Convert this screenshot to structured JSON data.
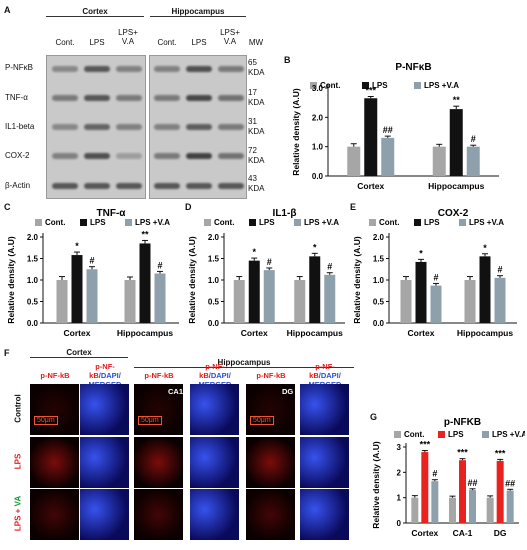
{
  "panels": {
    "A": "A",
    "B": "B",
    "C": "C",
    "D": "D",
    "E": "E",
    "F": "F",
    "G": "G"
  },
  "blot": {
    "groups": [
      "Cortex",
      "Hippocampus"
    ],
    "lanes": [
      "Cont.",
      "LPS",
      "LPS+\nV.A",
      "Cont.",
      "LPS",
      "LPS+\nV.A"
    ],
    "mw_header": "MW",
    "rows": [
      {
        "name": "P-NFκB",
        "mw": "65\nKDA"
      },
      {
        "name": "TNF-α",
        "mw": "17\nKDA"
      },
      {
        "name": "IL1-beta",
        "mw": "31\nKDA"
      },
      {
        "name": "COX-2",
        "mw": "72\nKDA"
      },
      {
        "name": "β-Actin",
        "mw": "43\nKDA"
      }
    ]
  },
  "colors": {
    "cont": "#a6a6a6",
    "lps": "#111111",
    "va": "#8fa0ad",
    "lps_red": "#e8231f"
  },
  "chart_data": [
    {
      "id": "B",
      "type": "bar",
      "title": "P-NFκB",
      "ylabel": "Relative density (A.U)",
      "categories": [
        "Cortex",
        "Hippocampus"
      ],
      "ylim": [
        0,
        3.0
      ],
      "yticks": [
        0.0,
        1.0,
        2.0,
        3.0
      ],
      "legend": [
        "Cont.",
        "LPS",
        "LPS +V.A"
      ],
      "series": [
        {
          "name": "Cont.",
          "values": [
            1.0,
            1.0
          ],
          "errors": [
            0.1,
            0.08
          ],
          "labels": [
            "",
            ""
          ]
        },
        {
          "name": "LPS",
          "values": [
            2.65,
            2.28
          ],
          "errors": [
            0.06,
            0.1
          ],
          "labels": [
            "***",
            "**"
          ]
        },
        {
          "name": "LPS +V.A",
          "values": [
            1.3,
            1.0
          ],
          "errors": [
            0.06,
            0.05
          ],
          "labels": [
            "##",
            "#"
          ]
        }
      ]
    },
    {
      "id": "C",
      "type": "bar",
      "title": "TNF-α",
      "ylabel": "Relative density (A.U)",
      "categories": [
        "Cortex",
        "Hippocampus"
      ],
      "ylim": [
        0,
        2.0
      ],
      "yticks": [
        0.0,
        0.5,
        1.0,
        1.5,
        2.0
      ],
      "legend": [
        "Cont.",
        "LPS",
        "LPS +V.A"
      ],
      "series": [
        {
          "name": "Cont.",
          "values": [
            1.0,
            1.0
          ],
          "errors": [
            0.08,
            0.07
          ],
          "labels": [
            "",
            ""
          ]
        },
        {
          "name": "LPS",
          "values": [
            1.58,
            1.85
          ],
          "errors": [
            0.07,
            0.07
          ],
          "labels": [
            "*",
            "**"
          ]
        },
        {
          "name": "LPS +V.A",
          "values": [
            1.25,
            1.15
          ],
          "errors": [
            0.06,
            0.05
          ],
          "labels": [
            "#",
            "#"
          ]
        }
      ]
    },
    {
      "id": "D",
      "type": "bar",
      "title": "IL1-β",
      "ylabel": "Relative density (A.U)",
      "categories": [
        "Cortex",
        "Hippocampus"
      ],
      "ylim": [
        0,
        2.0
      ],
      "yticks": [
        0.0,
        0.5,
        1.0,
        1.5,
        2.0
      ],
      "legend": [
        "Cont.",
        "LPS",
        "LPS +V.A"
      ],
      "series": [
        {
          "name": "Cont.",
          "values": [
            1.0,
            1.0
          ],
          "errors": [
            0.08,
            0.08
          ],
          "labels": [
            "",
            ""
          ]
        },
        {
          "name": "LPS",
          "values": [
            1.45,
            1.55
          ],
          "errors": [
            0.06,
            0.07
          ],
          "labels": [
            "*",
            "*"
          ]
        },
        {
          "name": "LPS +V.A",
          "values": [
            1.23,
            1.12
          ],
          "errors": [
            0.05,
            0.05
          ],
          "labels": [
            "#",
            "#"
          ]
        }
      ]
    },
    {
      "id": "E",
      "type": "bar",
      "title": "COX-2",
      "ylabel": "Relative density (A.U)",
      "categories": [
        "Cortex",
        "Hippocampus"
      ],
      "ylim": [
        0,
        2.0
      ],
      "yticks": [
        0.0,
        0.5,
        1.0,
        1.5,
        2.0
      ],
      "legend": [
        "Cont.",
        "LPS",
        "LPS +V.A"
      ],
      "series": [
        {
          "name": "Cont.",
          "values": [
            1.0,
            1.0
          ],
          "errors": [
            0.08,
            0.08
          ],
          "labels": [
            "",
            ""
          ]
        },
        {
          "name": "LPS",
          "values": [
            1.42,
            1.55
          ],
          "errors": [
            0.06,
            0.06
          ],
          "labels": [
            "*",
            "*"
          ]
        },
        {
          "name": "LPS +V.A",
          "values": [
            0.87,
            1.05
          ],
          "errors": [
            0.05,
            0.05
          ],
          "labels": [
            "#",
            "#"
          ]
        }
      ]
    },
    {
      "id": "G",
      "type": "bar",
      "title": "p-NFKB",
      "ylabel": "Relative density (A.U)",
      "categories": [
        "Cortex",
        "CA-1",
        "DG"
      ],
      "ylim": [
        0,
        3.0
      ],
      "yticks": [
        0,
        1,
        2,
        3
      ],
      "legend": [
        "Cont.",
        "LPS",
        "LPS +V.A"
      ],
      "series": [
        {
          "name": "Cont.",
          "values": [
            1.0,
            1.0,
            1.0
          ],
          "errors": [
            0.08,
            0.06,
            0.07
          ],
          "labels": [
            "",
            "",
            ""
          ]
        },
        {
          "name": "LPS",
          "values": [
            2.8,
            2.48,
            2.45
          ],
          "errors": [
            0.06,
            0.06,
            0.06
          ],
          "labels": [
            "***",
            "***",
            "***"
          ]
        },
        {
          "name": "LPS +V.A",
          "values": [
            1.65,
            1.3,
            1.28
          ],
          "errors": [
            0.06,
            0.05,
            0.05
          ],
          "labels": [
            "#",
            "##",
            "##"
          ]
        }
      ]
    }
  ],
  "micro": {
    "groups": [
      "Cortex",
      "Hippocampus"
    ],
    "cols": [
      {
        "a": "p-NF-kB",
        "b": ""
      },
      {
        "a": "p-NF-kB",
        "b": "/DAPI/\nMERGED"
      },
      {
        "a": "p-NF-kB",
        "b": ""
      },
      {
        "a": "p-NF-kB",
        "b": "/DAPI/\nMERGED"
      },
      {
        "a": "p-NF-kB",
        "b": ""
      },
      {
        "a": "p-NF-kB",
        "b": "/DAPI/\nMERGED"
      }
    ],
    "rows": [
      {
        "a": "Control",
        "b": ""
      },
      {
        "a": "LPS",
        "b": ""
      },
      {
        "a": "LPS + ",
        "b": "VA"
      }
    ],
    "tags": {
      "ca1": "CA1",
      "dg": "DG"
    },
    "scale": "50μm"
  }
}
